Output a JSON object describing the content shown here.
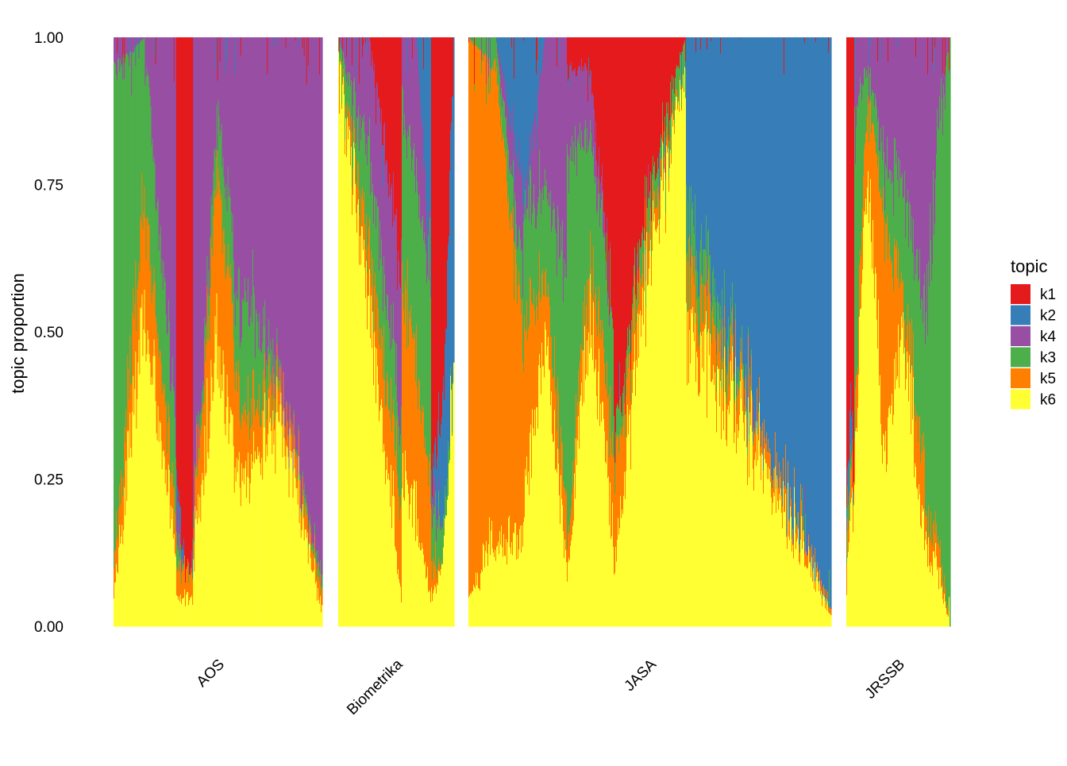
{
  "chart_data": {
    "type": "bar",
    "subtype": "stacked-structure-plot",
    "ylabel": "topic proportion",
    "ylim": [
      0,
      1
    ],
    "y_ticks": [
      "0.00",
      "0.25",
      "0.50",
      "0.75",
      "1.00"
    ],
    "grid": false,
    "legend": {
      "title": "topic",
      "position": "right",
      "entries": [
        {
          "key": "k1",
          "color": "#e41a1c"
        },
        {
          "key": "k2",
          "color": "#377eb8"
        },
        {
          "key": "k4",
          "color": "#984ea3"
        },
        {
          "key": "k3",
          "color": "#4daf4a"
        },
        {
          "key": "k5",
          "color": "#ff7f00"
        },
        {
          "key": "k6",
          "color": "#ffff33"
        }
      ]
    },
    "stack_order_bottom_to_top": [
      "k6",
      "k5",
      "k3",
      "k4",
      "k2",
      "k1"
    ],
    "groups": [
      {
        "name": "AOS",
        "clusters": [
          {
            "share": 0.3,
            "k6": [
              0.05,
              0.55,
              0.1
            ],
            "k5": [
              0.05,
              0.2,
              0.05
            ],
            "k3": [
              0.85,
              0.25,
              0.15
            ],
            "k4": [
              0.05,
              0.0,
              0.65
            ],
            "k2": [
              0.0,
              0.0,
              0.0
            ],
            "k1": [
              0.0,
              0.0,
              0.0
            ]
          },
          {
            "share": 0.08,
            "k6": [
              0.05,
              0.05,
              0.05
            ],
            "k5": [
              0.05,
              0.05,
              0.05
            ],
            "k3": [
              0.05,
              0.0,
              0.0
            ],
            "k4": [
              0.05,
              0.0,
              0.0
            ],
            "k2": [
              0.05,
              0.0,
              0.0
            ],
            "k1": [
              0.75,
              0.9,
              0.9
            ]
          },
          {
            "share": 0.24,
            "k6": [
              0.1,
              0.5,
              0.2
            ],
            "k5": [
              0.05,
              0.3,
              0.1
            ],
            "k3": [
              0.0,
              0.1,
              0.15
            ],
            "k4": [
              0.85,
              0.1,
              0.55
            ],
            "k2": [
              0.0,
              0.0,
              0.0
            ],
            "k1": [
              0.0,
              0.0,
              0.0
            ]
          },
          {
            "share": 0.38,
            "k6": [
              0.25,
              0.35,
              0.02
            ],
            "k5": [
              0.1,
              0.05,
              0.03
            ],
            "k3": [
              0.2,
              0.0,
              0.02
            ],
            "k4": [
              0.45,
              0.6,
              0.93
            ],
            "k2": [
              0.0,
              0.0,
              0.0
            ],
            "k1": [
              0.0,
              0.0,
              0.0
            ]
          }
        ]
      },
      {
        "name": "Biometrika",
        "clusters": [
          {
            "share": 0.55,
            "k6": [
              0.98,
              0.55,
              0.05
            ],
            "k5": [
              0.0,
              0.1,
              0.15
            ],
            "k3": [
              0.02,
              0.15,
              0.15
            ],
            "k4": [
              0.0,
              0.2,
              0.25
            ],
            "k2": [
              0.0,
              0.0,
              0.0
            ],
            "k1": [
              0.0,
              0.0,
              0.4
            ]
          },
          {
            "share": 0.25,
            "k6": [
              0.25,
              0.2,
              0.05
            ],
            "k5": [
              0.35,
              0.25,
              0.2
            ],
            "k3": [
              0.3,
              0.3,
              0.35
            ],
            "k4": [
              0.1,
              0.25,
              0.0
            ],
            "k2": [
              0.0,
              0.0,
              0.4
            ],
            "k1": [
              0.0,
              0.0,
              0.0
            ]
          },
          {
            "share": 0.2,
            "k6": [
              0.05,
              0.1,
              0.45
            ],
            "k5": [
              0.05,
              0.0,
              0.0
            ],
            "k3": [
              0.1,
              0.05,
              0.0
            ],
            "k4": [
              0.05,
              0.0,
              0.0
            ],
            "k2": [
              0.0,
              0.2,
              0.55
            ],
            "k1": [
              0.75,
              0.65,
              0.0
            ]
          }
        ]
      },
      {
        "name": "JASA",
        "clusters": [
          {
            "share": 0.15,
            "k6": [
              0.05,
              0.15,
              0.15
            ],
            "k5": [
              0.95,
              0.8,
              0.35
            ],
            "k3": [
              0.0,
              0.05,
              0.1
            ],
            "k4": [
              0.0,
              0.0,
              0.15
            ],
            "k2": [
              0.0,
              0.0,
              0.25
            ],
            "k1": [
              0.0,
              0.0,
              0.0
            ]
          },
          {
            "share": 0.12,
            "k6": [
              0.2,
              0.5,
              0.1
            ],
            "k5": [
              0.3,
              0.1,
              0.1
            ],
            "k3": [
              0.2,
              0.15,
              0.4
            ],
            "k4": [
              0.0,
              0.25,
              0.4
            ],
            "k2": [
              0.3,
              0.0,
              0.0
            ],
            "k1": [
              0.0,
              0.0,
              0.0
            ]
          },
          {
            "share": 0.13,
            "k6": [
              0.1,
              0.55,
              0.15
            ],
            "k5": [
              0.05,
              0.1,
              0.15
            ],
            "k3": [
              0.65,
              0.2,
              0.2
            ],
            "k4": [
              0.15,
              0.1,
              0.0
            ],
            "k2": [
              0.0,
              0.0,
              0.0
            ],
            "k1": [
              0.05,
              0.05,
              0.5
            ]
          },
          {
            "share": 0.2,
            "k6": [
              0.1,
              0.65,
              0.95
            ],
            "k5": [
              0.15,
              0.05,
              0.0
            ],
            "k3": [
              0.05,
              0.05,
              0.05
            ],
            "k4": [
              0.0,
              0.0,
              0.0
            ],
            "k2": [
              0.0,
              0.0,
              0.0
            ],
            "k1": [
              0.7,
              0.25,
              0.0
            ]
          },
          {
            "share": 0.4,
            "k6": [
              0.5,
              0.3,
              0.02
            ],
            "k5": [
              0.1,
              0.05,
              0.01
            ],
            "k3": [
              0.1,
              0.0,
              0.0
            ],
            "k4": [
              0.0,
              0.0,
              0.0
            ],
            "k2": [
              0.3,
              0.65,
              0.97
            ],
            "k1": [
              0.0,
              0.0,
              0.0
            ]
          }
        ]
      },
      {
        "name": "JRSSB",
        "clusters": [
          {
            "share": 0.08,
            "k6": [
              0.05,
              0.2,
              0.2
            ],
            "k5": [
              0.05,
              0.05,
              0.05
            ],
            "k3": [
              0.05,
              0.05,
              0.0
            ],
            "k4": [
              0.0,
              0.0,
              0.0
            ],
            "k2": [
              0.0,
              0.1,
              0.0
            ],
            "k1": [
              0.85,
              0.6,
              0.75
            ]
          },
          {
            "share": 0.28,
            "k6": [
              0.2,
              0.75,
              0.3
            ],
            "k5": [
              0.05,
              0.15,
              0.4
            ],
            "k3": [
              0.4,
              0.05,
              0.1
            ],
            "k4": [
              0.1,
              0.05,
              0.2
            ],
            "k2": [
              0.0,
              0.0,
              0.0
            ],
            "k1": [
              0.0,
              0.0,
              0.0
            ]
          },
          {
            "share": 0.4,
            "k6": [
              0.3,
              0.5,
              0.15
            ],
            "k5": [
              0.4,
              0.05,
              0.15
            ],
            "k3": [
              0.1,
              0.2,
              0.25
            ],
            "k4": [
              0.2,
              0.25,
              0.45
            ],
            "k2": [
              0.0,
              0.0,
              0.0
            ],
            "k1": [
              0.0,
              0.0,
              0.0
            ]
          },
          {
            "share": 0.24,
            "k6": [
              0.15,
              0.1,
              0.0
            ],
            "k5": [
              0.05,
              0.05,
              0.0
            ],
            "k3": [
              0.3,
              0.7,
              1.0
            ],
            "k4": [
              0.5,
              0.15,
              0.0
            ],
            "k2": [
              0.0,
              0.0,
              0.0
            ],
            "k1": [
              0.0,
              0.0,
              0.0
            ]
          }
        ]
      }
    ]
  }
}
